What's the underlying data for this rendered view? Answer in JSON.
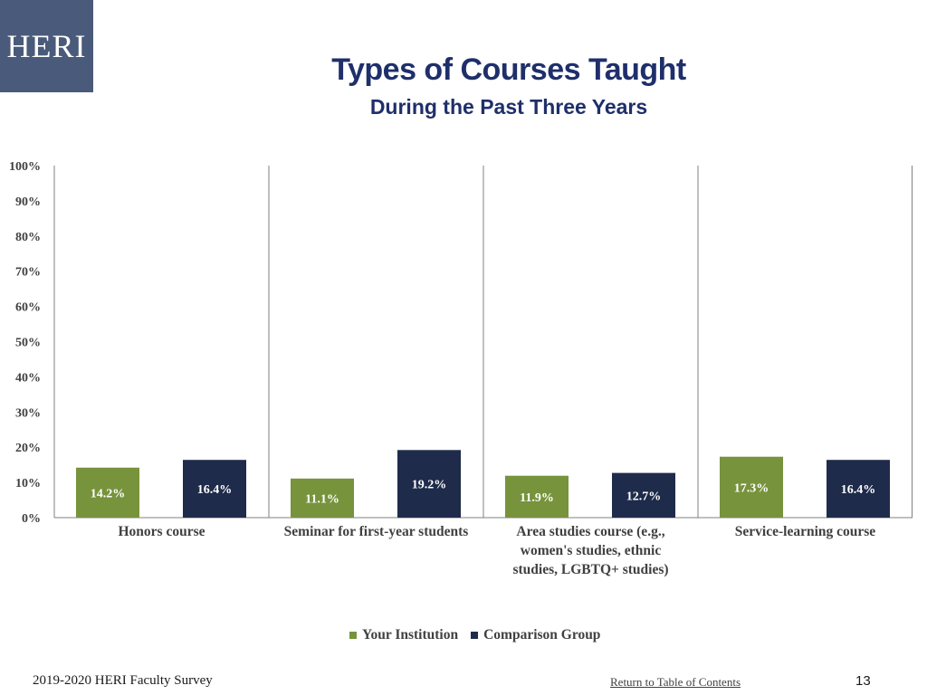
{
  "logo": {
    "text": "HERI"
  },
  "header": {
    "title": "Types of Courses Taught",
    "subtitle": "During the Past Three Years"
  },
  "colors": {
    "logo_bg": "#4a5a7a",
    "title": "#1f2f6b",
    "your_institution": "#77933c",
    "comparison_group": "#1f2b4a",
    "grid": "#808080",
    "text": "#404040"
  },
  "chart_data": {
    "type": "bar",
    "categories": [
      [
        "Honors course"
      ],
      [
        "Seminar for first-year students"
      ],
      [
        "Area studies course (e.g.,",
        "women's studies, ethnic",
        "studies, LGBTQ+ studies)"
      ],
      [
        "Service-learning course"
      ]
    ],
    "series": [
      {
        "name": "Your Institution",
        "values": [
          14.2,
          11.1,
          11.9,
          17.3
        ],
        "labels": [
          "14.2%",
          "11.1%",
          "11.9%",
          "17.3%"
        ]
      },
      {
        "name": "Comparison Group",
        "values": [
          16.4,
          19.2,
          12.7,
          16.4
        ],
        "labels": [
          "16.4%",
          "19.2%",
          "12.7%",
          "16.4%"
        ]
      }
    ],
    "ylim": [
      0,
      100
    ],
    "yticks": [
      "0%",
      "10%",
      "20%",
      "30%",
      "40%",
      "50%",
      "60%",
      "70%",
      "80%",
      "90%",
      "100%"
    ],
    "title": "Types of Courses Taught",
    "legend_position": "bottom"
  },
  "footer": {
    "survey": "2019-2020 HERI Faculty Survey",
    "link": "Return to Table of Contents",
    "page": "13"
  }
}
